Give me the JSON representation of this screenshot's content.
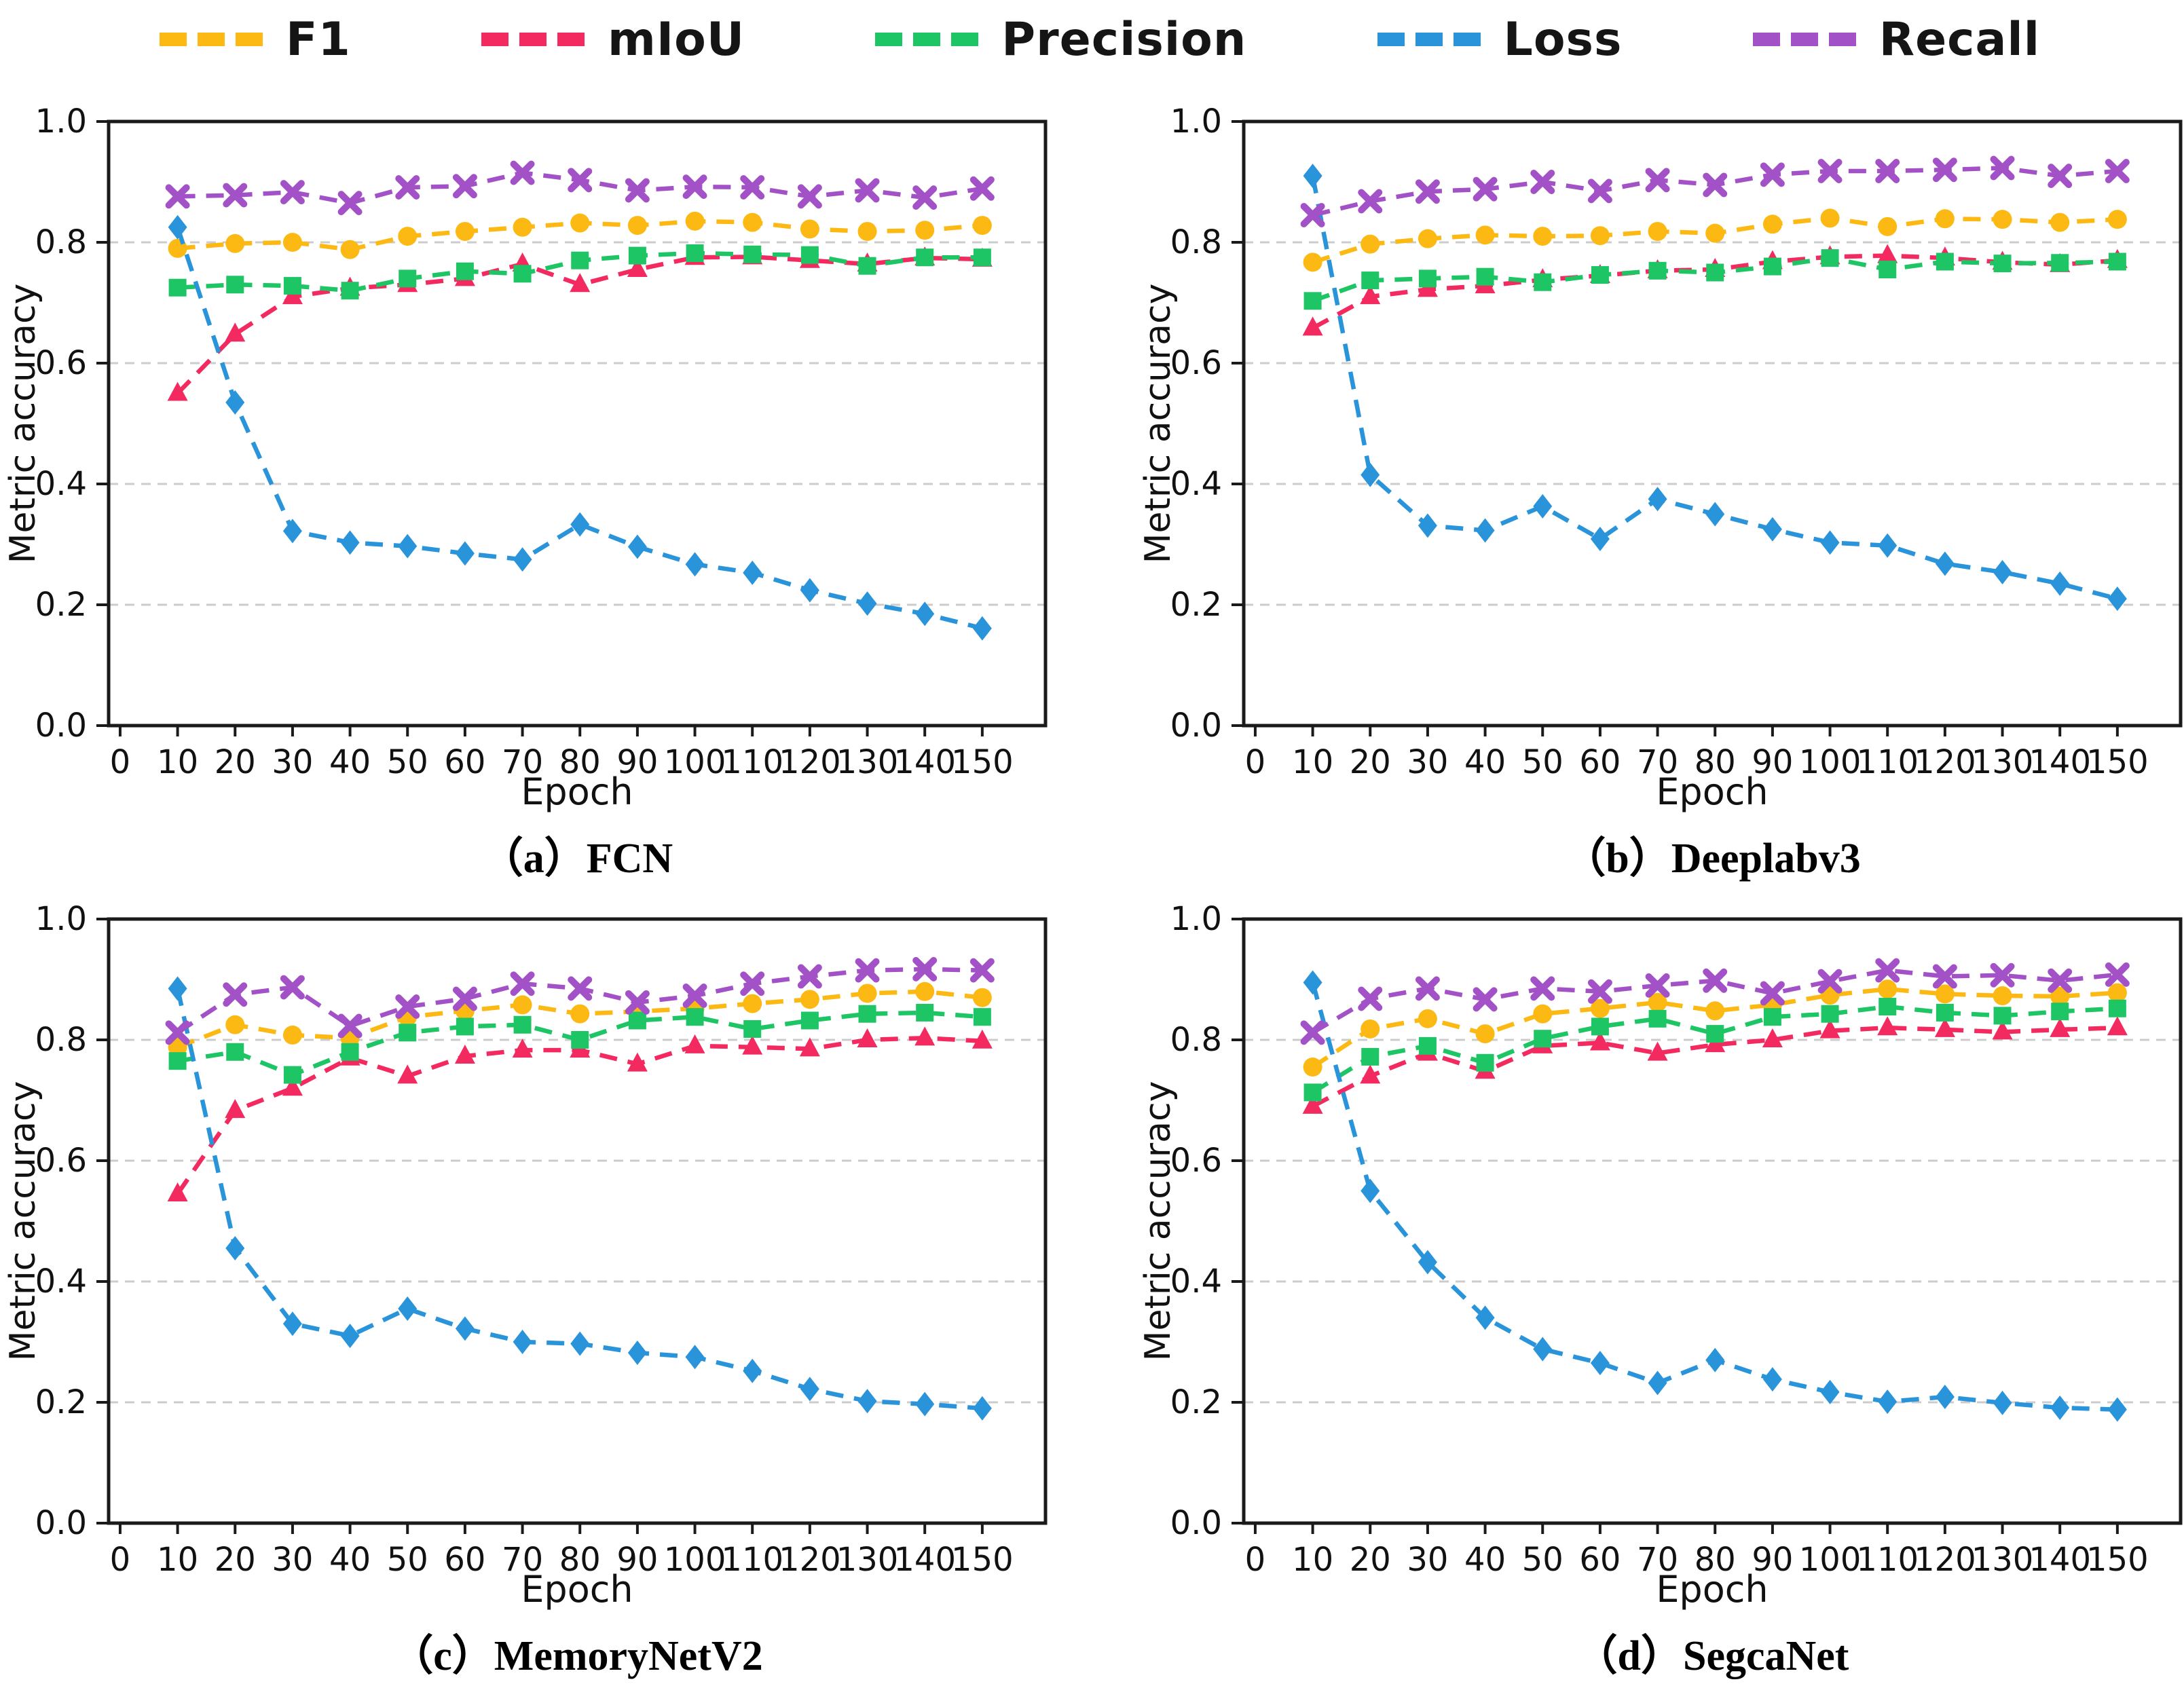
{
  "page": {
    "background": "#ffffff",
    "description": "Training metric curves for four segmentation models"
  },
  "legend": {
    "items": [
      {
        "label": "F1",
        "color": "#FCB913",
        "marker": "circle"
      },
      {
        "label": "mIoU",
        "color": "#F32A5F",
        "marker": "triangle"
      },
      {
        "label": "Precision",
        "color": "#1EC564",
        "marker": "square"
      },
      {
        "label": "Loss",
        "color": "#2A94DB",
        "marker": "diamond"
      },
      {
        "label": "Recall",
        "color": "#A351C6",
        "marker": "x"
      }
    ]
  },
  "axes": {
    "x_label": "Epoch",
    "y_label": "Metric accuracy",
    "x_ticks": [
      0,
      10,
      20,
      30,
      40,
      50,
      60,
      70,
      80,
      90,
      100,
      110,
      120,
      130,
      140,
      150
    ],
    "y_ticks": [
      "0.0",
      "0.2",
      "0.4",
      "0.6",
      "0.8",
      "1.0"
    ],
    "x_lim": [
      -2,
      161
    ],
    "y_lim": [
      0,
      1
    ],
    "grid_values": [
      0.2,
      0.4,
      0.6,
      0.8
    ],
    "grid_color": "#cccccc",
    "spine_color": "#1a1a1a"
  },
  "chart_data": [
    {
      "type": "line",
      "title": "（a）FCN",
      "model": "FCN",
      "xlabel": "Epoch",
      "ylabel": "Metric accuracy",
      "ylim": [
        0,
        1
      ],
      "grid": true,
      "legend_position": "top",
      "x": [
        10,
        20,
        30,
        40,
        50,
        60,
        70,
        80,
        90,
        100,
        110,
        120,
        130,
        140,
        150
      ],
      "series": [
        {
          "name": "F1",
          "color": "#FCB913",
          "marker": "circle",
          "values": [
            0.79,
            0.798,
            0.8,
            0.788,
            0.81,
            0.818,
            0.825,
            0.832,
            0.828,
            0.835,
            0.833,
            0.822,
            0.818,
            0.82,
            0.828
          ]
        },
        {
          "name": "mIoU",
          "color": "#F32A5F",
          "marker": "triangle",
          "values": [
            0.55,
            0.648,
            0.71,
            0.724,
            0.73,
            0.74,
            0.764,
            0.73,
            0.755,
            0.775,
            0.776,
            0.77,
            0.764,
            0.774,
            0.772
          ]
        },
        {
          "name": "Precision",
          "color": "#1EC564",
          "marker": "square",
          "values": [
            0.725,
            0.73,
            0.728,
            0.72,
            0.74,
            0.752,
            0.748,
            0.77,
            0.778,
            0.782,
            0.78,
            0.779,
            0.761,
            0.775,
            0.775
          ]
        },
        {
          "name": "Loss",
          "color": "#2A94DB",
          "marker": "diamond",
          "values": [
            0.825,
            0.535,
            0.322,
            0.303,
            0.297,
            0.285,
            0.275,
            0.333,
            0.296,
            0.267,
            0.253,
            0.224,
            0.202,
            0.185,
            0.161
          ]
        },
        {
          "name": "Recall",
          "color": "#A351C6",
          "marker": "x",
          "values": [
            0.876,
            0.878,
            0.883,
            0.865,
            0.891,
            0.893,
            0.915,
            0.903,
            0.886,
            0.892,
            0.891,
            0.876,
            0.886,
            0.874,
            0.889
          ]
        }
      ]
    },
    {
      "type": "line",
      "title": "（b）Deeplabv3",
      "model": "Deeplabv3",
      "xlabel": "Epoch",
      "ylabel": "Metric accuracy",
      "ylim": [
        0,
        1
      ],
      "grid": true,
      "legend_position": "top",
      "x": [
        10,
        20,
        30,
        40,
        50,
        60,
        70,
        80,
        90,
        100,
        110,
        120,
        130,
        140,
        150
      ],
      "series": [
        {
          "name": "F1",
          "color": "#FCB913",
          "marker": "circle",
          "values": [
            0.767,
            0.797,
            0.806,
            0.812,
            0.81,
            0.811,
            0.818,
            0.815,
            0.83,
            0.84,
            0.826,
            0.839,
            0.838,
            0.833,
            0.838
          ]
        },
        {
          "name": "mIoU",
          "color": "#F32A5F",
          "marker": "triangle",
          "values": [
            0.658,
            0.71,
            0.722,
            0.728,
            0.738,
            0.745,
            0.753,
            0.755,
            0.768,
            0.776,
            0.778,
            0.774,
            0.767,
            0.763,
            0.77
          ]
        },
        {
          "name": "Precision",
          "color": "#1EC564",
          "marker": "square",
          "values": [
            0.703,
            0.737,
            0.74,
            0.743,
            0.734,
            0.746,
            0.753,
            0.75,
            0.76,
            0.774,
            0.755,
            0.768,
            0.765,
            0.766,
            0.768
          ]
        },
        {
          "name": "Loss",
          "color": "#2A94DB",
          "marker": "diamond",
          "values": [
            0.91,
            0.415,
            0.331,
            0.323,
            0.363,
            0.309,
            0.375,
            0.35,
            0.325,
            0.303,
            0.298,
            0.268,
            0.254,
            0.235,
            0.21
          ]
        },
        {
          "name": "Recall",
          "color": "#A351C6",
          "marker": "x",
          "values": [
            0.845,
            0.868,
            0.884,
            0.888,
            0.9,
            0.885,
            0.903,
            0.895,
            0.912,
            0.918,
            0.918,
            0.92,
            0.923,
            0.91,
            0.918
          ]
        }
      ]
    },
    {
      "type": "line",
      "title": "（c）MemoryNetV2",
      "model": "MemoryNetV2",
      "xlabel": "Epoch",
      "ylabel": "Metric accuracy",
      "ylim": [
        0,
        1
      ],
      "grid": true,
      "legend_position": "top",
      "x": [
        10,
        20,
        30,
        40,
        50,
        60,
        70,
        80,
        90,
        100,
        110,
        120,
        130,
        140,
        150
      ],
      "series": [
        {
          "name": "F1",
          "color": "#FCB913",
          "marker": "circle",
          "values": [
            0.788,
            0.825,
            0.808,
            0.803,
            0.838,
            0.848,
            0.858,
            0.843,
            0.847,
            0.852,
            0.86,
            0.867,
            0.877,
            0.88,
            0.87
          ]
        },
        {
          "name": "mIoU",
          "color": "#F32A5F",
          "marker": "triangle",
          "values": [
            0.545,
            0.683,
            0.72,
            0.77,
            0.74,
            0.773,
            0.783,
            0.783,
            0.76,
            0.79,
            0.788,
            0.785,
            0.8,
            0.803,
            0.798
          ]
        },
        {
          "name": "Precision",
          "color": "#1EC564",
          "marker": "square",
          "values": [
            0.765,
            0.78,
            0.742,
            0.78,
            0.812,
            0.822,
            0.825,
            0.8,
            0.832,
            0.838,
            0.818,
            0.832,
            0.843,
            0.845,
            0.838
          ]
        },
        {
          "name": "Loss",
          "color": "#2A94DB",
          "marker": "diamond",
          "values": [
            0.885,
            0.455,
            0.33,
            0.31,
            0.355,
            0.322,
            0.3,
            0.297,
            0.282,
            0.275,
            0.252,
            0.222,
            0.202,
            0.197,
            0.19
          ]
        },
        {
          "name": "Recall",
          "color": "#A351C6",
          "marker": "x",
          "values": [
            0.812,
            0.875,
            0.887,
            0.823,
            0.855,
            0.868,
            0.893,
            0.885,
            0.862,
            0.873,
            0.893,
            0.905,
            0.915,
            0.917,
            0.915
          ]
        }
      ]
    },
    {
      "type": "line",
      "title": "（d）SegcaNet",
      "model": "SegcaNet",
      "xlabel": "Epoch",
      "ylabel": "Metric accuracy",
      "ylim": [
        0,
        1
      ],
      "grid": true,
      "legend_position": "top",
      "x": [
        10,
        20,
        30,
        40,
        50,
        60,
        70,
        80,
        90,
        100,
        110,
        120,
        130,
        140,
        150
      ],
      "series": [
        {
          "name": "F1",
          "color": "#FCB913",
          "marker": "circle",
          "values": [
            0.755,
            0.818,
            0.835,
            0.81,
            0.843,
            0.852,
            0.862,
            0.848,
            0.858,
            0.874,
            0.884,
            0.876,
            0.873,
            0.872,
            0.878
          ]
        },
        {
          "name": "mIoU",
          "color": "#F32A5F",
          "marker": "triangle",
          "values": [
            0.69,
            0.74,
            0.778,
            0.748,
            0.79,
            0.795,
            0.778,
            0.792,
            0.8,
            0.815,
            0.82,
            0.817,
            0.813,
            0.817,
            0.82
          ]
        },
        {
          "name": "Precision",
          "color": "#1EC564",
          "marker": "square",
          "values": [
            0.713,
            0.772,
            0.79,
            0.762,
            0.802,
            0.822,
            0.835,
            0.81,
            0.838,
            0.843,
            0.855,
            0.845,
            0.84,
            0.847,
            0.852
          ]
        },
        {
          "name": "Loss",
          "color": "#2A94DB",
          "marker": "diamond",
          "values": [
            0.895,
            0.55,
            0.432,
            0.34,
            0.288,
            0.265,
            0.232,
            0.27,
            0.238,
            0.217,
            0.201,
            0.209,
            0.199,
            0.191,
            0.188
          ]
        },
        {
          "name": "Recall",
          "color": "#A351C6",
          "marker": "x",
          "values": [
            0.812,
            0.868,
            0.885,
            0.867,
            0.885,
            0.88,
            0.89,
            0.898,
            0.877,
            0.897,
            0.915,
            0.905,
            0.907,
            0.898,
            0.908
          ]
        }
      ]
    }
  ]
}
